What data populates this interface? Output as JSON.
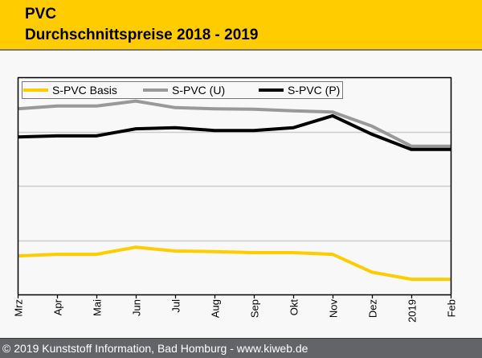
{
  "header": {
    "title": "PVC",
    "subtitle": "Durchschnittspreise 2018 - 2019"
  },
  "footer": {
    "text": "© 2019 Kunststoff Information, Bad Homburg - www.kiweb.de"
  },
  "colors": {
    "header_bg": "#ffcc00",
    "footer_bg": "#636468",
    "basis": "#ffcc00",
    "u": "#999999",
    "p": "#000000",
    "grid": "#cccccc"
  },
  "chart_data": {
    "type": "line",
    "title": "Durchschnittspreise 2018 - 2019",
    "xlabel": "",
    "ylabel": "",
    "y_tick_labels_shown": false,
    "y_units": "relative (gridline units, no scale printed)",
    "ylim": [
      0,
      4
    ],
    "grid": true,
    "legend_position": "top-left",
    "categories": [
      "Mrz",
      "Apr",
      "Mai",
      "Jun",
      "Jul",
      "Aug",
      "Sep",
      "Okt",
      "Nov",
      "Dez",
      "2019",
      "Feb"
    ],
    "series": [
      {
        "name": "S-PVC Basis",
        "color": "#ffcc00",
        "values": [
          0.71,
          0.74,
          0.74,
          0.87,
          0.8,
          0.79,
          0.77,
          0.77,
          0.74,
          0.41,
          0.28,
          0.28
        ]
      },
      {
        "name": "S-PVC (U)",
        "color": "#999999",
        "values": [
          3.42,
          3.47,
          3.47,
          3.56,
          3.44,
          3.42,
          3.41,
          3.38,
          3.36,
          3.1,
          2.73,
          2.73
        ]
      },
      {
        "name": "S-PVC (P)",
        "color": "#000000",
        "values": [
          2.9,
          2.92,
          2.92,
          3.05,
          3.07,
          3.02,
          3.02,
          3.07,
          3.29,
          2.95,
          2.67,
          2.67
        ]
      }
    ]
  }
}
